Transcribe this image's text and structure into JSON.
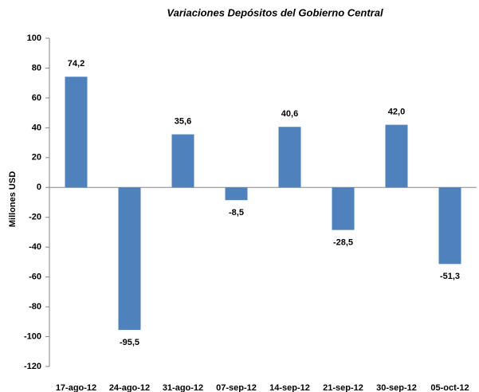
{
  "chart_data": {
    "type": "bar",
    "title": "Variaciones Depósitos del Gobierno Central",
    "y_label": "Millones USD",
    "categories": [
      "17-ago-12",
      "24-ago-12",
      "31-ago-12",
      "07-sep-12",
      "14-sep-12",
      "21-sep-12",
      "30-sep-12",
      "05-oct-12"
    ],
    "values": [
      74.2,
      -95.5,
      35.6,
      -8.5,
      40.6,
      -28.5,
      42.0,
      -51.3
    ],
    "value_labels": [
      "74,2",
      "-95,5",
      "35,6",
      "-8,5",
      "40,6",
      "-28,5",
      "42,0",
      "-51,3"
    ],
    "color": "#4f81bd",
    "ylim": [
      -120,
      100
    ],
    "yticks": [
      -120,
      -100,
      -80,
      -60,
      -40,
      -20,
      0,
      20,
      40,
      60,
      80,
      100
    ],
    "grid": false
  }
}
